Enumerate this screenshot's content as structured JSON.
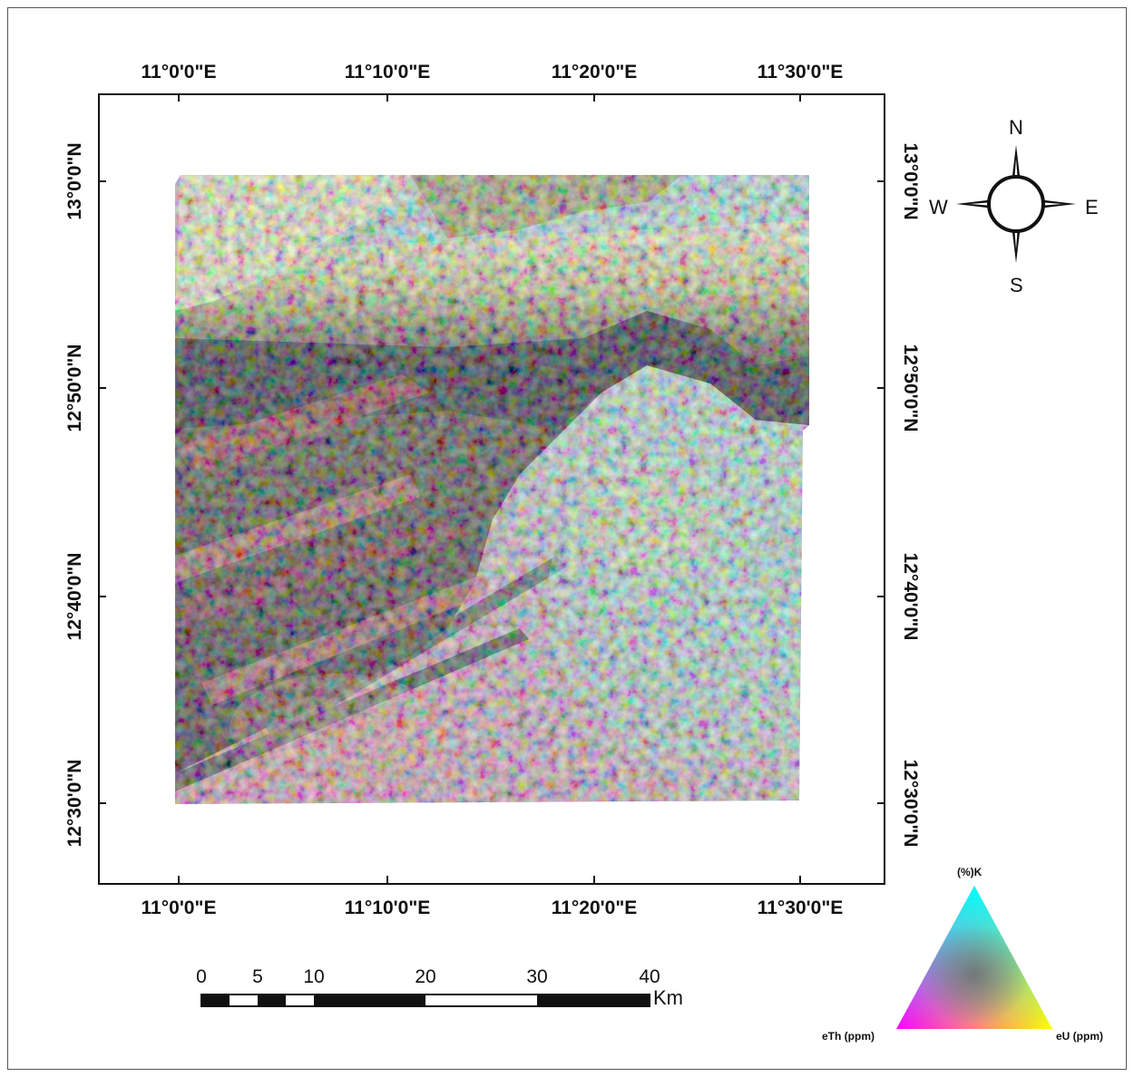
{
  "map": {
    "top_labels": [
      "11°0'0\"E",
      "11°10'0\"E",
      "11°20'0\"E",
      "11°30'0\"E"
    ],
    "bottom_labels": [
      "11°0'0\"E",
      "11°10'0\"E",
      "11°20'0\"E",
      "11°30'0\"E"
    ],
    "left_labels": [
      "13°0'0\"N",
      "12°50'0\"N",
      "12°40'0\"N",
      "12°30'0\"N"
    ],
    "right_labels": [
      "13°0'0\"N",
      "12°50'0\"N",
      "12°40'0\"N",
      "12°30'0\"N"
    ]
  },
  "compass": {
    "north": "N",
    "south": "S",
    "east": "E",
    "west": "W"
  },
  "scale_bar": {
    "ticks": [
      "0",
      "5",
      "10",
      "20",
      "30",
      "40"
    ],
    "unit": "Km"
  },
  "legend": {
    "top": "(%)K",
    "left": "eTh (ppm)",
    "right": "eU (ppm)",
    "colors": {
      "top": "#00ffff",
      "left": "#ff00ff",
      "right": "#ffff00",
      "center": "#606060"
    }
  }
}
